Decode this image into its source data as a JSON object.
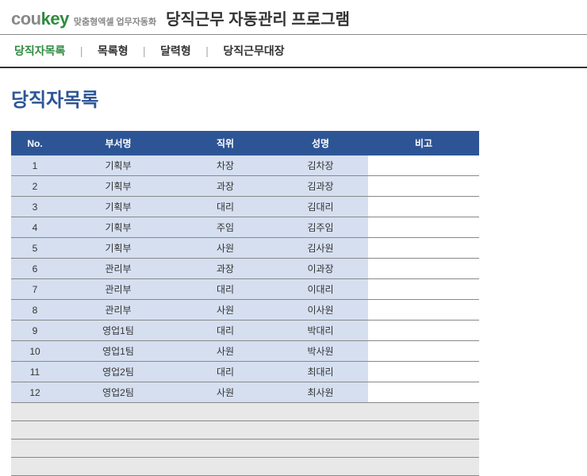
{
  "header": {
    "logo_prefix": "cou",
    "logo_suffix": "key",
    "subtitle": "맞춤형엑셀 업무자동화",
    "program_title": "당직근무 자동관리 프로그램"
  },
  "nav": {
    "items": [
      {
        "label": "당직자목록",
        "active": true
      },
      {
        "label": "목록형",
        "active": false
      },
      {
        "label": "달력형",
        "active": false
      },
      {
        "label": "당직근무대장",
        "active": false
      }
    ]
  },
  "page": {
    "title": "당직자목록"
  },
  "table": {
    "columns": [
      "No.",
      "부서명",
      "직위",
      "성명",
      "비고"
    ],
    "rows": [
      [
        "1",
        "기획부",
        "차장",
        "김차장",
        ""
      ],
      [
        "2",
        "기획부",
        "과장",
        "김과장",
        ""
      ],
      [
        "3",
        "기획부",
        "대리",
        "김대리",
        ""
      ],
      [
        "4",
        "기획부",
        "주임",
        "김주임",
        ""
      ],
      [
        "5",
        "기획부",
        "사원",
        "김사원",
        ""
      ],
      [
        "6",
        "관리부",
        "과장",
        "이과장",
        ""
      ],
      [
        "7",
        "관리부",
        "대리",
        "이대리",
        ""
      ],
      [
        "8",
        "관리부",
        "사원",
        "이사원",
        ""
      ],
      [
        "9",
        "영업1팀",
        "대리",
        "박대리",
        ""
      ],
      [
        "10",
        "영업1팀",
        "사원",
        "박사원",
        ""
      ],
      [
        "11",
        "영업2팀",
        "대리",
        "최대리",
        ""
      ],
      [
        "12",
        "영업2팀",
        "사원",
        "최사원",
        ""
      ]
    ],
    "empty_rows": 4
  },
  "colors": {
    "header_bg": "#2d5596",
    "header_fg": "#ffffff",
    "data_bg": "#d5dff0",
    "empty_bg": "#e8e8e8",
    "accent_green": "#2e8b3e",
    "title_blue": "#2d5596"
  }
}
